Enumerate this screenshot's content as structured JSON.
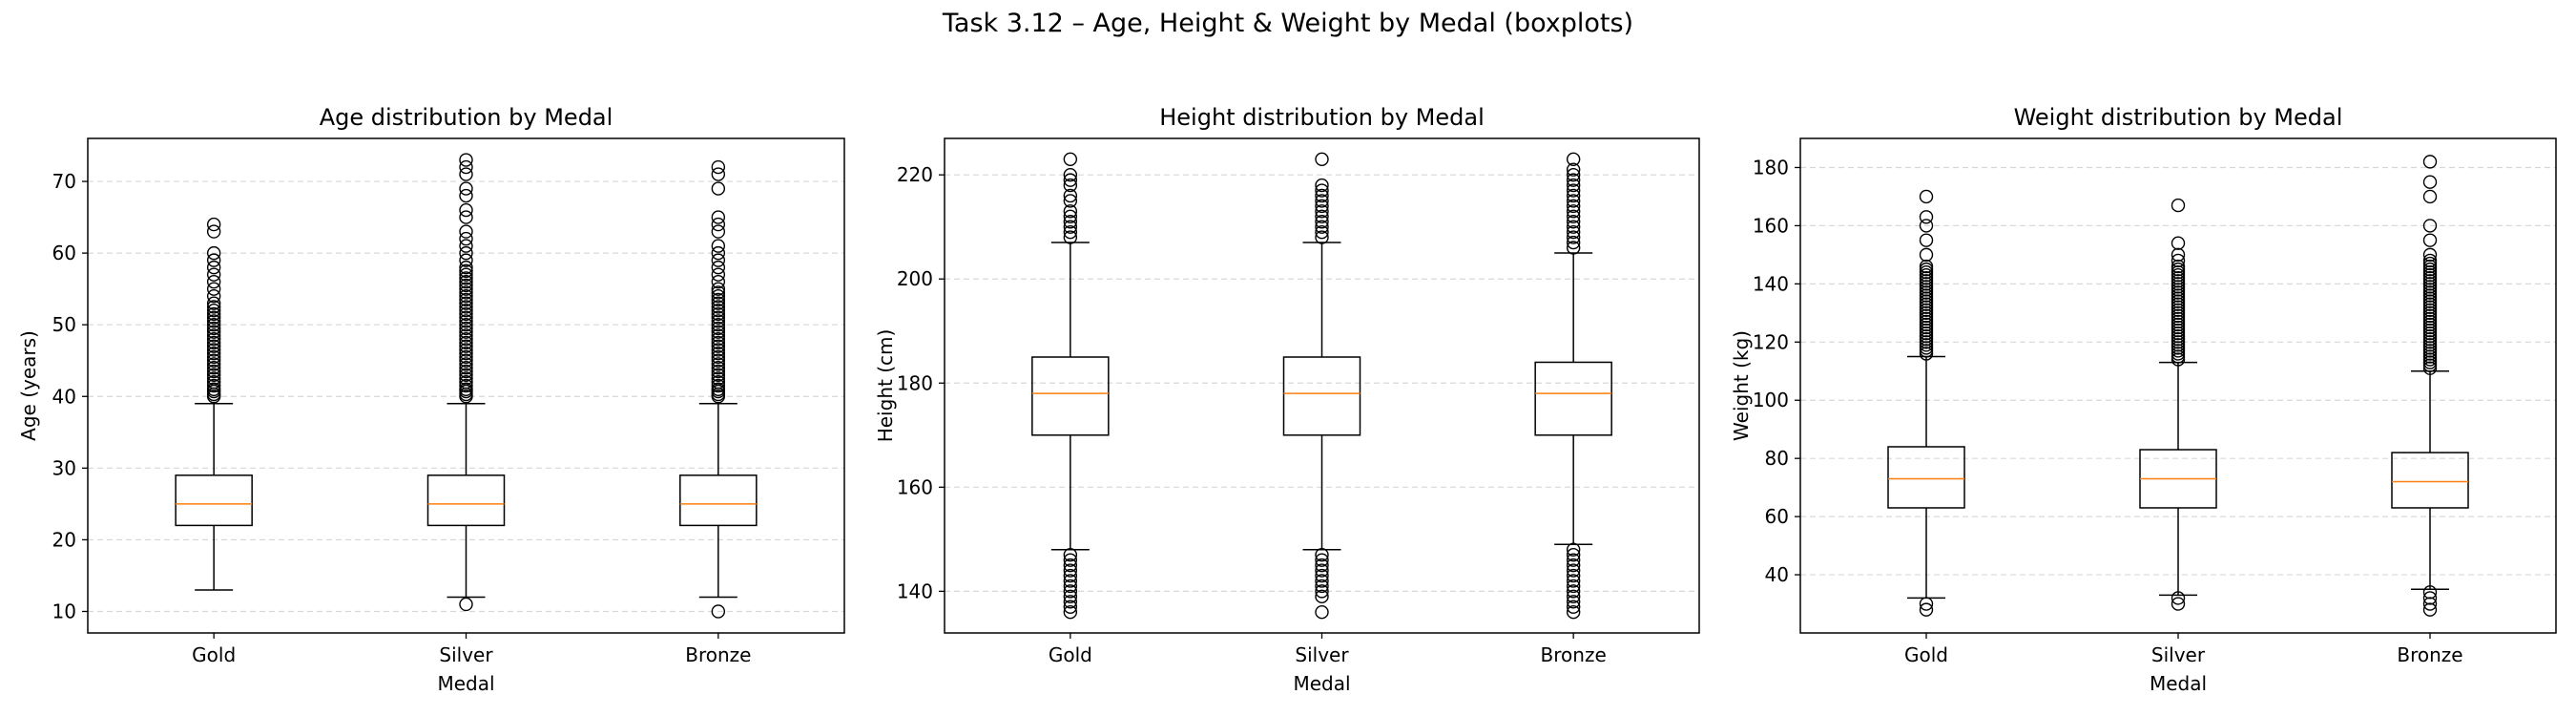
{
  "figure": {
    "title": "Task 3.12 – Age, Height & Weight by Medal (boxplots)"
  },
  "chart_data": [
    {
      "type": "box",
      "title": "Age distribution by Medal",
      "xlabel": "Medal",
      "ylabel": "Age (years)",
      "categories": [
        "Gold",
        "Silver",
        "Bronze"
      ],
      "ylim": [
        7,
        76
      ],
      "yticks": [
        10,
        20,
        30,
        40,
        50,
        60,
        70
      ],
      "grid": "y-dashed",
      "boxes": [
        {
          "category": "Gold",
          "whisker_low": 13,
          "q1": 22,
          "median": 25,
          "q3": 29,
          "whisker_high": 39,
          "outliers": [
            40,
            40.3,
            40.7,
            41,
            41.5,
            42,
            42.5,
            43,
            43.5,
            44,
            44.5,
            45,
            45.5,
            46,
            46.5,
            47,
            47.5,
            48,
            48.5,
            49,
            49.5,
            50,
            50.5,
            51,
            51.5,
            52,
            52.5,
            53,
            54,
            55,
            56,
            57,
            58,
            59,
            60,
            63,
            64
          ]
        },
        {
          "category": "Silver",
          "whisker_low": 12,
          "q1": 22,
          "median": 25,
          "q3": 29,
          "whisker_high": 39,
          "outliers": [
            11,
            40,
            40.3,
            40.7,
            41,
            41.5,
            42,
            42.5,
            43,
            43.5,
            44,
            44.5,
            45,
            45.5,
            46,
            46.5,
            47,
            47.5,
            48,
            48.5,
            49,
            49.5,
            50,
            50.5,
            51,
            51.5,
            52,
            52.5,
            53,
            53.5,
            54,
            54.5,
            55,
            55.5,
            56,
            56.5,
            57,
            57.5,
            58,
            59,
            60,
            61,
            62,
            63,
            65,
            66,
            68,
            69,
            71,
            72,
            73
          ]
        },
        {
          "category": "Bronze",
          "whisker_low": 12,
          "q1": 22,
          "median": 25,
          "q3": 29,
          "whisker_high": 39,
          "outliers": [
            10,
            40,
            40.3,
            40.7,
            41,
            41.5,
            42,
            42.5,
            43,
            43.5,
            44,
            44.5,
            45,
            45.5,
            46,
            46.5,
            47,
            47.5,
            48,
            48.5,
            49,
            49.5,
            50,
            50.5,
            51,
            51.5,
            52,
            52.5,
            53,
            53.5,
            54,
            54.5,
            55,
            56,
            57,
            58,
            59,
            60,
            61,
            63,
            64,
            65,
            69,
            71,
            72
          ]
        }
      ]
    },
    {
      "type": "box",
      "title": "Height distribution by Medal",
      "xlabel": "Medal",
      "ylabel": "Height (cm)",
      "categories": [
        "Gold",
        "Silver",
        "Bronze"
      ],
      "ylim": [
        132,
        227
      ],
      "yticks": [
        140,
        160,
        180,
        200,
        220
      ],
      "grid": "y-dashed",
      "boxes": [
        {
          "category": "Gold",
          "whisker_low": 148,
          "q1": 170,
          "median": 178,
          "q3": 185,
          "whisker_high": 207,
          "outliers": [
            136,
            137,
            138,
            139,
            140,
            141,
            142,
            143,
            144,
            145,
            146,
            147,
            208,
            209,
            210,
            211,
            212,
            213,
            215,
            216,
            218,
            219,
            220,
            223
          ]
        },
        {
          "category": "Silver",
          "whisker_low": 148,
          "q1": 170,
          "median": 178,
          "q3": 185,
          "whisker_high": 207,
          "outliers": [
            136,
            139,
            140,
            141,
            142,
            143,
            144,
            145,
            146,
            147,
            208,
            209,
            210,
            211,
            212,
            213,
            214,
            215,
            216,
            217,
            218,
            223
          ]
        },
        {
          "category": "Bronze",
          "whisker_low": 149,
          "q1": 170,
          "median": 178,
          "q3": 184,
          "whisker_high": 205,
          "outliers": [
            136,
            137,
            138,
            139,
            140,
            141,
            142,
            143,
            144,
            145,
            146,
            147,
            148,
            206,
            207,
            208,
            209,
            210,
            211,
            212,
            213,
            214,
            215,
            216,
            217,
            218,
            219,
            220,
            221,
            223
          ]
        }
      ]
    },
    {
      "type": "box",
      "title": "Weight distribution by Medal",
      "xlabel": "Medal",
      "ylabel": "Weight (kg)",
      "categories": [
        "Gold",
        "Silver",
        "Bronze"
      ],
      "ylim": [
        20,
        190
      ],
      "yticks": [
        40,
        60,
        80,
        100,
        120,
        140,
        160,
        180
      ],
      "grid": "y-dashed",
      "boxes": [
        {
          "category": "Gold",
          "whisker_low": 32,
          "q1": 63,
          "median": 73,
          "q3": 84,
          "whisker_high": 115,
          "outliers": [
            28,
            30,
            116,
            117,
            118,
            119,
            120,
            121,
            122,
            123,
            124,
            125,
            126,
            127,
            128,
            129,
            130,
            131,
            132,
            133,
            134,
            135,
            136,
            137,
            138,
            139,
            140,
            141,
            142,
            143,
            144,
            145,
            146,
            150,
            155,
            160,
            163,
            170
          ]
        },
        {
          "category": "Silver",
          "whisker_low": 33,
          "q1": 63,
          "median": 73,
          "q3": 83,
          "whisker_high": 113,
          "outliers": [
            30,
            32,
            114,
            115,
            116,
            117,
            118,
            119,
            120,
            121,
            122,
            123,
            124,
            125,
            126,
            127,
            128,
            129,
            130,
            131,
            132,
            133,
            134,
            135,
            136,
            137,
            138,
            139,
            140,
            141,
            142,
            143,
            144,
            145,
            146,
            148,
            150,
            154,
            167
          ]
        },
        {
          "category": "Bronze",
          "whisker_low": 35,
          "q1": 63,
          "median": 72,
          "q3": 82,
          "whisker_high": 110,
          "outliers": [
            28,
            30,
            32,
            34,
            111,
            112,
            113,
            114,
            115,
            116,
            117,
            118,
            119,
            120,
            121,
            122,
            123,
            124,
            125,
            126,
            127,
            128,
            129,
            130,
            131,
            132,
            133,
            134,
            135,
            136,
            137,
            138,
            139,
            140,
            141,
            142,
            143,
            144,
            145,
            146,
            147,
            148,
            150,
            155,
            160,
            170,
            175,
            182
          ]
        }
      ]
    }
  ]
}
